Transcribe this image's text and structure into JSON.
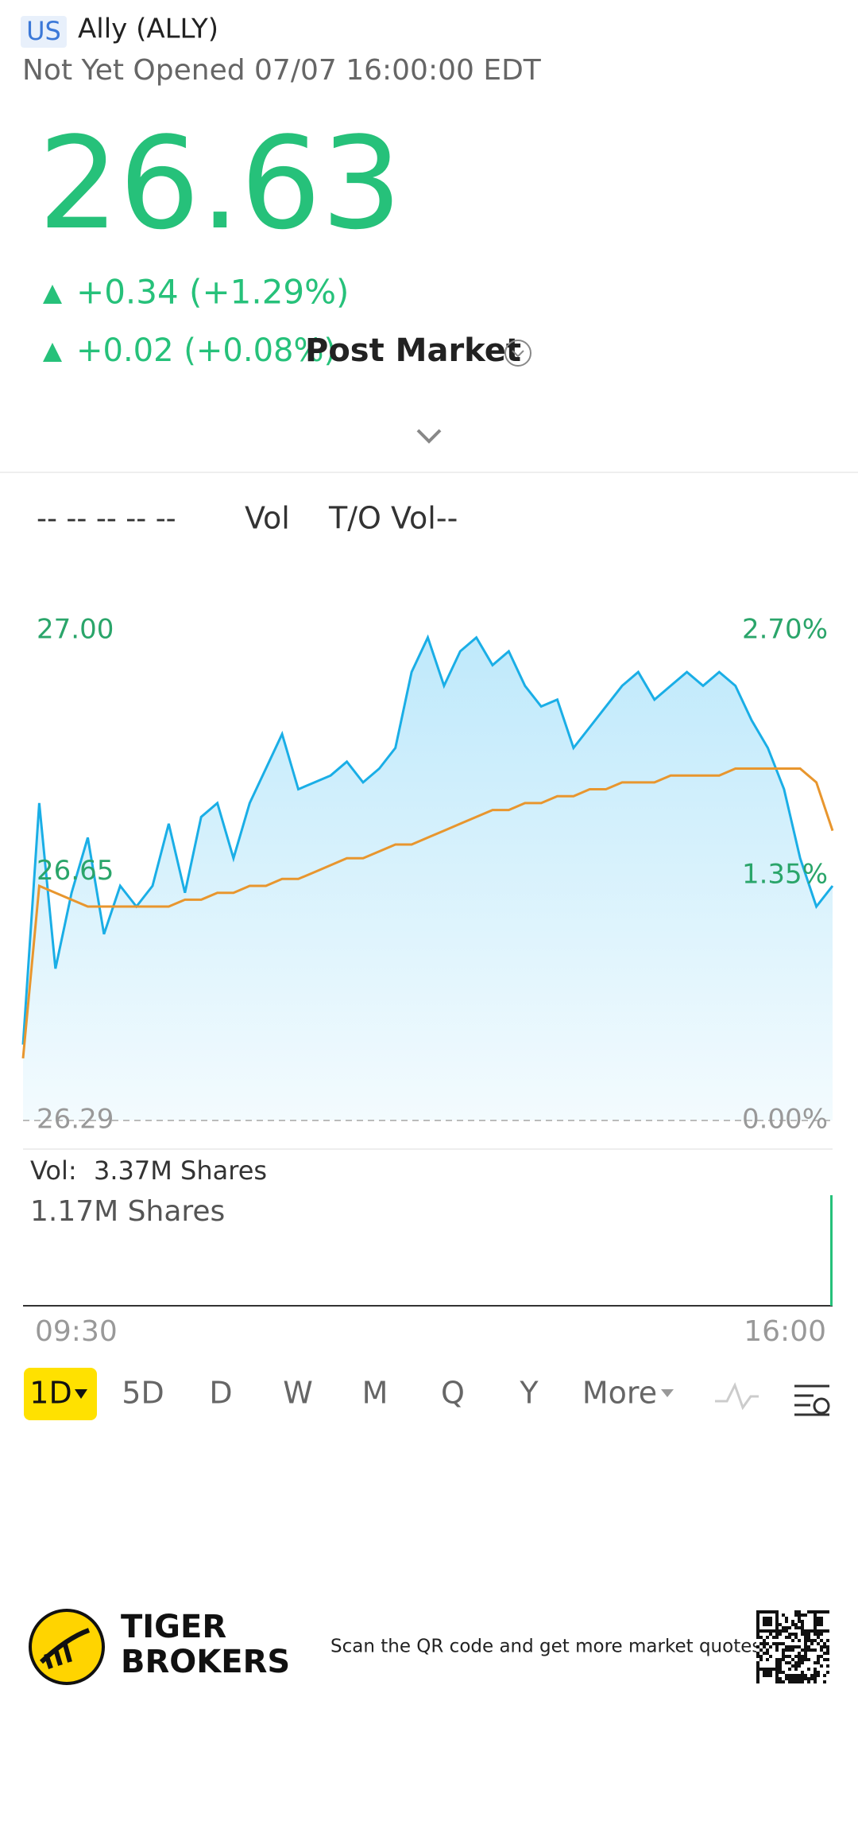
{
  "header": {
    "market": "US",
    "name": "Ally (ALLY)",
    "status": "Not Yet Opened 07/07 16:00:00 EDT"
  },
  "quote": {
    "price": "26.63",
    "change": "+0.34 (+1.29%)",
    "post_change": "+0.02 (+0.08%)",
    "post_label": "Post Market"
  },
  "indicators": {
    "ma": "-- -- -- -- --",
    "vol": "Vol",
    "to_vol": "T/O Vol--"
  },
  "chart_data": {
    "type": "line",
    "ylim": [
      26.29,
      27.0
    ],
    "yticks": [
      {
        "value": 26.29,
        "label": "26.29"
      },
      {
        "value": 26.65,
        "label": "26.65"
      },
      {
        "value": 27.0,
        "label": "27.00"
      }
    ],
    "y2lim": [
      0,
      2.7
    ],
    "y2ticks": [
      {
        "value": 0,
        "label": "0.00%"
      },
      {
        "value": 1.35,
        "label": "1.35%"
      },
      {
        "value": 2.7,
        "label": "2.70%"
      }
    ],
    "x_labels": [
      "09:30",
      "16:00"
    ],
    "series": [
      {
        "name": "Price",
        "color": "#1aaee6",
        "values": [
          26.4,
          26.75,
          26.51,
          26.62,
          26.7,
          26.56,
          26.63,
          26.6,
          26.63,
          26.72,
          26.62,
          26.73,
          26.75,
          26.67,
          26.75,
          26.8,
          26.85,
          26.77,
          26.78,
          26.79,
          26.81,
          26.78,
          26.8,
          26.83,
          26.94,
          26.99,
          26.92,
          26.97,
          26.99,
          26.95,
          26.97,
          26.92,
          26.89,
          26.9,
          26.83,
          26.86,
          26.89,
          26.92,
          26.94,
          26.9,
          26.92,
          26.94,
          26.92,
          26.94,
          26.92,
          26.87,
          26.83,
          26.77,
          26.67,
          26.6,
          26.63
        ]
      },
      {
        "name": "Average",
        "color": "#e8962e",
        "values": [
          26.38,
          26.63,
          26.62,
          26.61,
          26.6,
          26.6,
          26.6,
          26.6,
          26.6,
          26.6,
          26.61,
          26.61,
          26.62,
          26.62,
          26.63,
          26.63,
          26.64,
          26.64,
          26.65,
          26.66,
          26.67,
          26.67,
          26.68,
          26.69,
          26.69,
          26.7,
          26.71,
          26.72,
          26.73,
          26.74,
          26.74,
          26.75,
          26.75,
          26.76,
          26.76,
          26.77,
          26.77,
          26.78,
          26.78,
          26.78,
          26.79,
          26.79,
          26.79,
          26.79,
          26.8,
          26.8,
          26.8,
          26.8,
          26.8,
          26.78,
          26.71
        ]
      }
    ]
  },
  "volume": {
    "label": "Vol:",
    "total": "3.37M Shares",
    "current": "1.17M Shares"
  },
  "tabs": [
    "1D",
    "5D",
    "D",
    "W",
    "M",
    "Q",
    "Y",
    "More"
  ],
  "footer": {
    "brand_line1": "TIGER",
    "brand_line2": "BROKERS",
    "qr_text": "Scan the QR code and get more market quotes"
  }
}
